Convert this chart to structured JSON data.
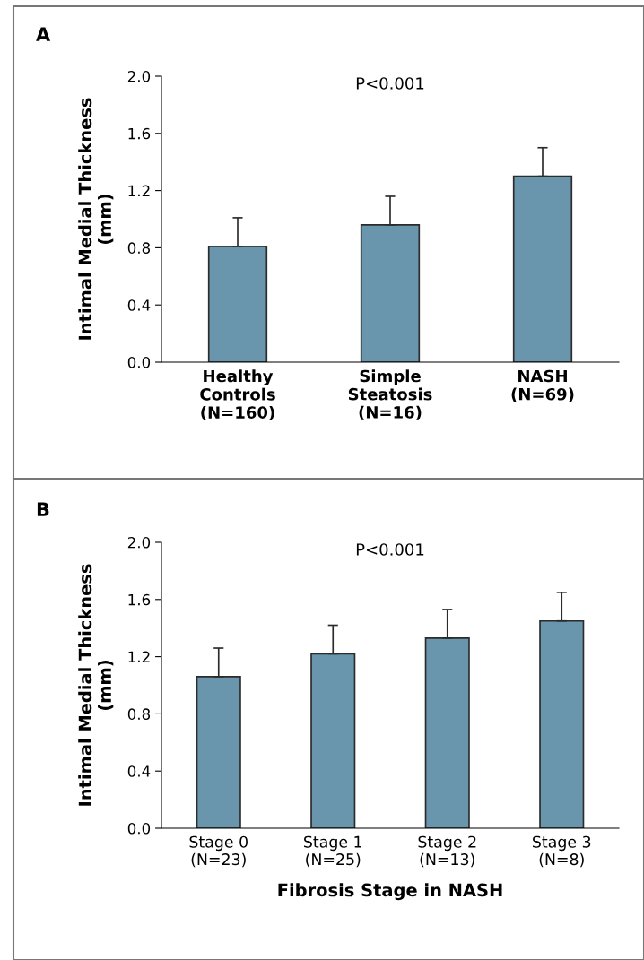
{
  "chart_data": [
    {
      "type": "bar",
      "title": "A",
      "ylabel": "Intimal Medial Thickness\n(mm)",
      "categories": [
        "Healthy\nControls\n(N=160)",
        "Simple\nSteatosis\n(N=16)",
        "NASH\n(N=69)"
      ],
      "values": [
        0.81,
        0.96,
        1.3
      ],
      "errors": [
        [
          0.81,
          1.01
        ],
        [
          0.96,
          1.16
        ],
        [
          1.3,
          1.5
        ]
      ],
      "color": "#6a96ad",
      "ylim": [
        0,
        2.0
      ],
      "yticks": [
        {
          "value": 0,
          "label": "0.0"
        },
        {
          "value": 0.4,
          "label": "0.4"
        },
        {
          "value": 0.8,
          "label": "0.8"
        },
        {
          "value": 1.2,
          "label": "1.2"
        },
        {
          "value": 1.6,
          "label": "1.6"
        },
        {
          "value": 2.0,
          "label": "2.0"
        }
      ],
      "grid": false,
      "legend": false,
      "annotations": [
        "P<0.001"
      ]
    },
    {
      "type": "bar",
      "title": "B",
      "ylabel": "Intimal Medial Thickness\n(mm)",
      "xlabel": "Fibrosis Stage in NASH",
      "categories": [
        "Stage 0\n(N=23)",
        "Stage 1\n(N=25)",
        "Stage 2\n(N=13)",
        "Stage 3\n(N=8)"
      ],
      "values": [
        1.06,
        1.22,
        1.33,
        1.45
      ],
      "errors": [
        [
          1.06,
          1.26
        ],
        [
          1.22,
          1.42
        ],
        [
          1.33,
          1.53
        ],
        [
          1.45,
          1.65
        ]
      ],
      "color": "#6a96ad",
      "ylim": [
        0,
        2.0
      ],
      "yticks": [
        {
          "value": 0,
          "label": "0.0"
        },
        {
          "value": 0.4,
          "label": "0.4"
        },
        {
          "value": 0.8,
          "label": "0.8"
        },
        {
          "value": 1.2,
          "label": "1.2"
        },
        {
          "value": 1.6,
          "label": "1.6"
        },
        {
          "value": 2.0,
          "label": "2.0"
        }
      ],
      "grid": false,
      "legend": false,
      "annotations": [
        "P<0.001"
      ]
    }
  ]
}
